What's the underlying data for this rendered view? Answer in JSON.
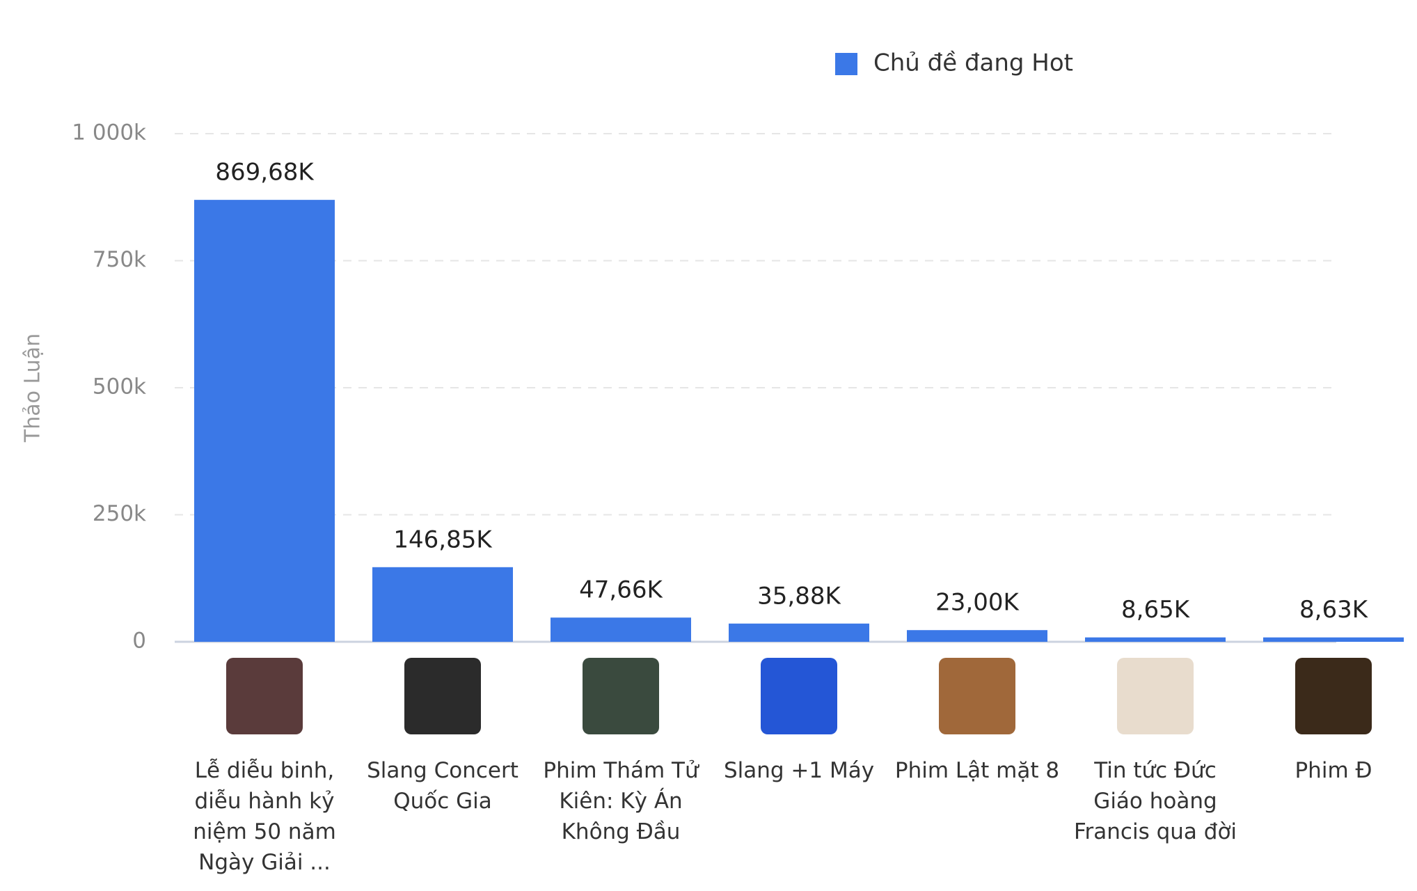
{
  "chart_data": {
    "type": "bar",
    "legend_label": "Chủ đề đang Hot",
    "y_axis_label": "Thảo Luận",
    "categories": [
      "Lễ diễu binh, diễu hành kỷ niệm 50 năm Ngày Giải ...",
      "Slang Concert Quốc Gia",
      "Phim Thám Tử Kiên: Kỳ Án Không Đầu",
      "Slang +1 Máy",
      "Phim Lật mặt 8",
      "Tin tức Đức Giáo hoàng Francis qua đời",
      "Phim Đ"
    ],
    "values": [
      869680,
      146850,
      47660,
      35880,
      23000,
      8650,
      8630
    ],
    "value_labels": [
      "869,68K",
      "146,85K",
      "47,66K",
      "35,88K",
      "23,00K",
      "8,65K",
      "8,63K"
    ],
    "color": "#3b78e7",
    "ylim": [
      0,
      1000000
    ],
    "yticks": [
      0,
      {
        "value": 250000,
        "label": "250k"
      },
      {
        "value": 500000,
        "label": "500k"
      },
      {
        "value": 750000,
        "label": "750k"
      },
      {
        "value": 1000000,
        "label": "1 000k"
      }
    ],
    "grid": true
  }
}
